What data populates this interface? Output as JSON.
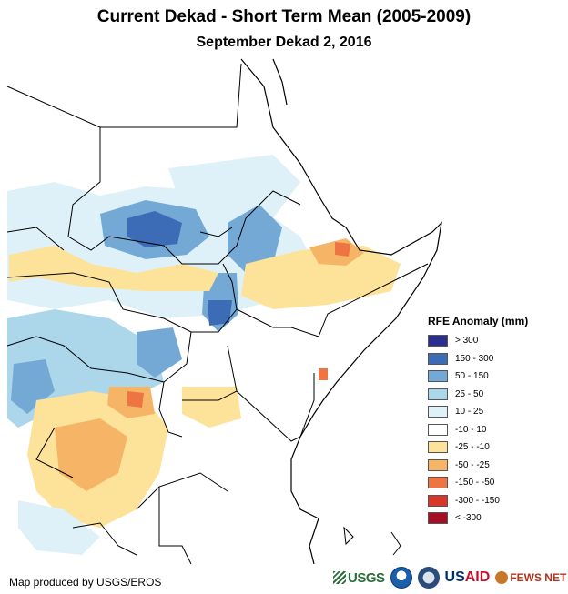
{
  "title": "Current Dekad - Short Term Mean (2005-2009)",
  "subtitle": "September Dekad 2, 2016",
  "legend": {
    "title": "RFE Anomaly (mm)",
    "items": [
      {
        "label": "> 300",
        "color": "#2b2d8f"
      },
      {
        "label": "150 - 300",
        "color": "#3d6cb6"
      },
      {
        "label": "50 - 150",
        "color": "#74a9d5"
      },
      {
        "label": "25 - 50",
        "color": "#acd6ea"
      },
      {
        "label": "10 - 25",
        "color": "#dff1f8"
      },
      {
        "label": "-10 - 10",
        "color": "#ffffff"
      },
      {
        "label": "-25 - -10",
        "color": "#fde29a"
      },
      {
        "label": "-50 - -25",
        "color": "#f6b566"
      },
      {
        "label": "-150 - -50",
        "color": "#ef7444"
      },
      {
        "label": "-300 - -150",
        "color": "#d7362b"
      },
      {
        "label": "< -300",
        "color": "#a50f26"
      }
    ]
  },
  "credit": "Map produced by USGS/EROS",
  "logos": {
    "usgs": "USGS",
    "usaid_us": "US",
    "usaid_aid": "AID",
    "fews": "FEWS NET"
  },
  "colors": {
    "border": "#000000",
    "coast": "#000000"
  }
}
